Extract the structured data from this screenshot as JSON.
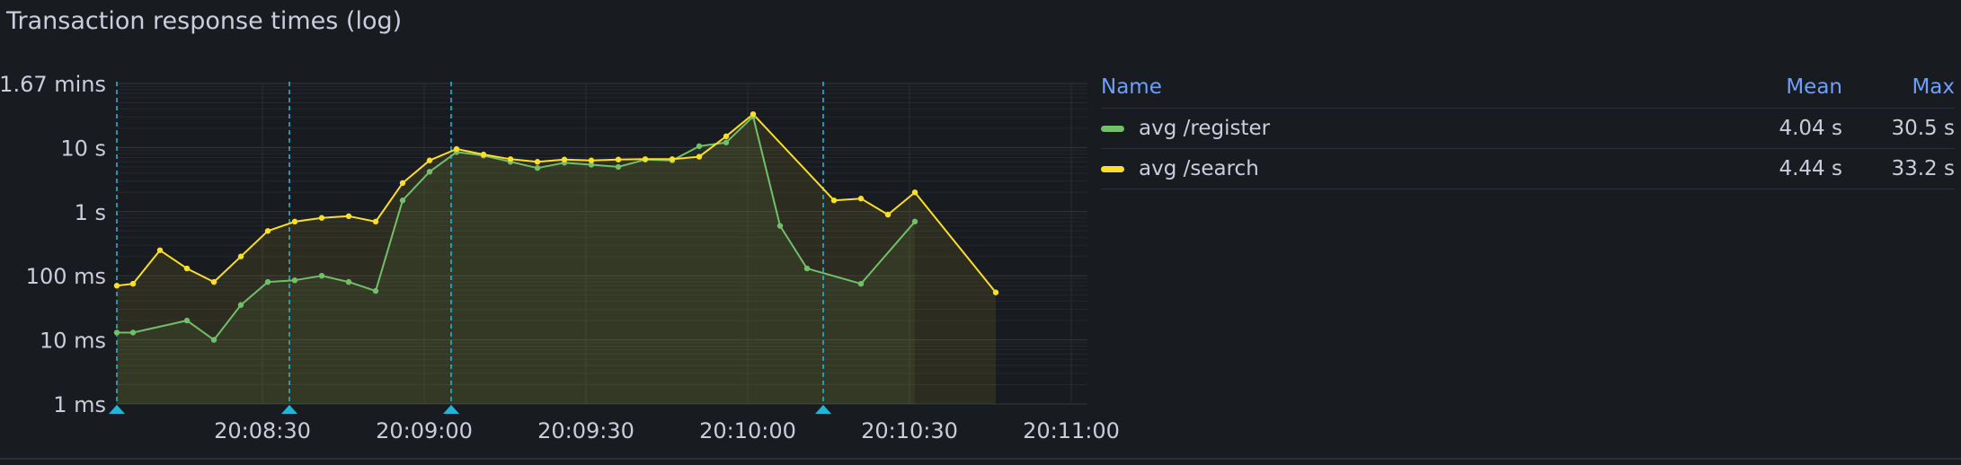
{
  "panel": {
    "title": "Transaction response times (log)"
  },
  "chart_data": {
    "type": "line",
    "scale": "log",
    "x_format": "time",
    "x_range": [
      "20:08:03",
      "20:11:03"
    ],
    "x_ticks": [
      "20:08:30",
      "20:09:00",
      "20:09:30",
      "20:10:00",
      "20:10:30",
      "20:11:00"
    ],
    "y_range_seconds": [
      0.001,
      100
    ],
    "y_ticks": [
      {
        "value": 100,
        "label": "1.67 mins"
      },
      {
        "value": 10,
        "label": "10 s"
      },
      {
        "value": 1,
        "label": "1 s"
      },
      {
        "value": 0.1,
        "label": "100 ms"
      },
      {
        "value": 0.01,
        "label": "10 ms"
      },
      {
        "value": 0.001,
        "label": "1 ms"
      }
    ],
    "annotations": [
      "20:08:03",
      "20:08:35",
      "20:09:05",
      "20:10:14"
    ],
    "series": [
      {
        "name": "avg /register",
        "color": "#73bf69",
        "points": [
          [
            "20:08:03",
            0.013
          ],
          [
            "20:08:06",
            0.013
          ],
          [
            "20:08:16",
            0.02
          ],
          [
            "20:08:21",
            0.01
          ],
          [
            "20:08:26",
            0.035
          ],
          [
            "20:08:31",
            0.08
          ],
          [
            "20:08:36",
            0.085
          ],
          [
            "20:08:41",
            0.1
          ],
          [
            "20:08:46",
            0.08
          ],
          [
            "20:08:51",
            0.058
          ],
          [
            "20:08:56",
            1.5
          ],
          [
            "20:09:01",
            4.2
          ],
          [
            "20:09:06",
            8.5
          ],
          [
            "20:09:11",
            7.5
          ],
          [
            "20:09:16",
            6.0
          ],
          [
            "20:09:21",
            4.8
          ],
          [
            "20:09:26",
            5.8
          ],
          [
            "20:09:31",
            5.4
          ],
          [
            "20:09:36",
            5.0
          ],
          [
            "20:09:41",
            6.5
          ],
          [
            "20:09:46",
            6.3
          ],
          [
            "20:09:51",
            10.5
          ],
          [
            "20:09:56",
            12.0
          ],
          [
            "20:10:01",
            30.5
          ],
          [
            "20:10:06",
            0.6
          ],
          [
            "20:10:11",
            0.13
          ],
          [
            "20:10:21",
            0.075
          ],
          [
            "20:10:31",
            0.7
          ]
        ]
      },
      {
        "name": "avg /search",
        "color": "#fade2a",
        "points": [
          [
            "20:08:03",
            0.07
          ],
          [
            "20:08:06",
            0.075
          ],
          [
            "20:08:11",
            0.25
          ],
          [
            "20:08:16",
            0.13
          ],
          [
            "20:08:21",
            0.08
          ],
          [
            "20:08:26",
            0.2
          ],
          [
            "20:08:31",
            0.5
          ],
          [
            "20:08:36",
            0.7
          ],
          [
            "20:08:41",
            0.8
          ],
          [
            "20:08:46",
            0.85
          ],
          [
            "20:08:51",
            0.7
          ],
          [
            "20:08:56",
            2.8
          ],
          [
            "20:09:01",
            6.3
          ],
          [
            "20:09:06",
            9.5
          ],
          [
            "20:09:11",
            7.8
          ],
          [
            "20:09:16",
            6.6
          ],
          [
            "20:09:21",
            6.0
          ],
          [
            "20:09:26",
            6.5
          ],
          [
            "20:09:31",
            6.3
          ],
          [
            "20:09:36",
            6.5
          ],
          [
            "20:09:41",
            6.6
          ],
          [
            "20:09:46",
            6.6
          ],
          [
            "20:09:51",
            7.2
          ],
          [
            "20:09:56",
            15.0
          ],
          [
            "20:10:01",
            33.2
          ],
          [
            "20:10:16",
            1.5
          ],
          [
            "20:10:21",
            1.6
          ],
          [
            "20:10:26",
            0.9
          ],
          [
            "20:10:31",
            2.0
          ],
          [
            "20:10:46",
            0.055
          ]
        ]
      }
    ],
    "legend": {
      "placement": "right",
      "columns": [
        "Name",
        "Mean",
        "Max"
      ],
      "rows": [
        {
          "name": "avg /register",
          "mean": "4.04 s",
          "max": "30.5 s",
          "color": "#73bf69"
        },
        {
          "name": "avg /search",
          "mean": "4.44 s",
          "max": "33.2 s",
          "color": "#fade2a"
        }
      ]
    }
  }
}
